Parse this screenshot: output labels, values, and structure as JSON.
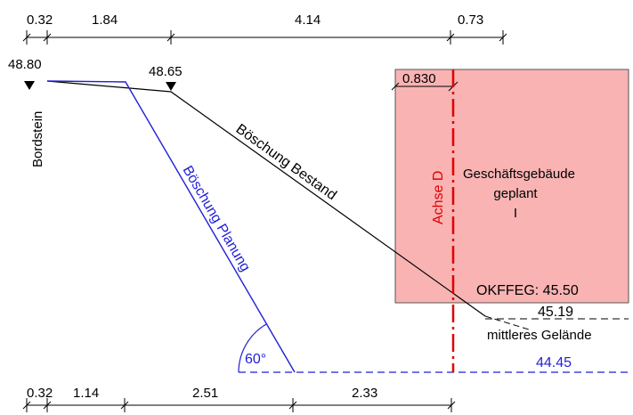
{
  "top_dims": [
    "0.32",
    "1.84",
    "4.14",
    "0.73"
  ],
  "bottom_dims": [
    "0.32",
    "1.14",
    "2.51",
    "2.33"
  ],
  "elevations": {
    "bordstein": "48.80",
    "existing_top": "48.65",
    "okffeg": "OKFFEG: 45.50",
    "mean_ground": "45.19",
    "planned_toe": "44.45"
  },
  "labels": {
    "bordstein": "Bordstein",
    "slope_existing": "Böschung Bestand",
    "slope_planned": "Böschung Planung",
    "axis": "Achse D",
    "building_line1": "Geschäftsgebäude",
    "building_line2": "geplant",
    "building_line3": "I",
    "mean_ground_label": "mittleres Gelände",
    "offset": "0.830",
    "angle": "60°"
  },
  "colors": {
    "building_fill": "#f9b3b3",
    "axis": "#e00000",
    "planned": "#1f1fd6",
    "existing": "#000000"
  }
}
